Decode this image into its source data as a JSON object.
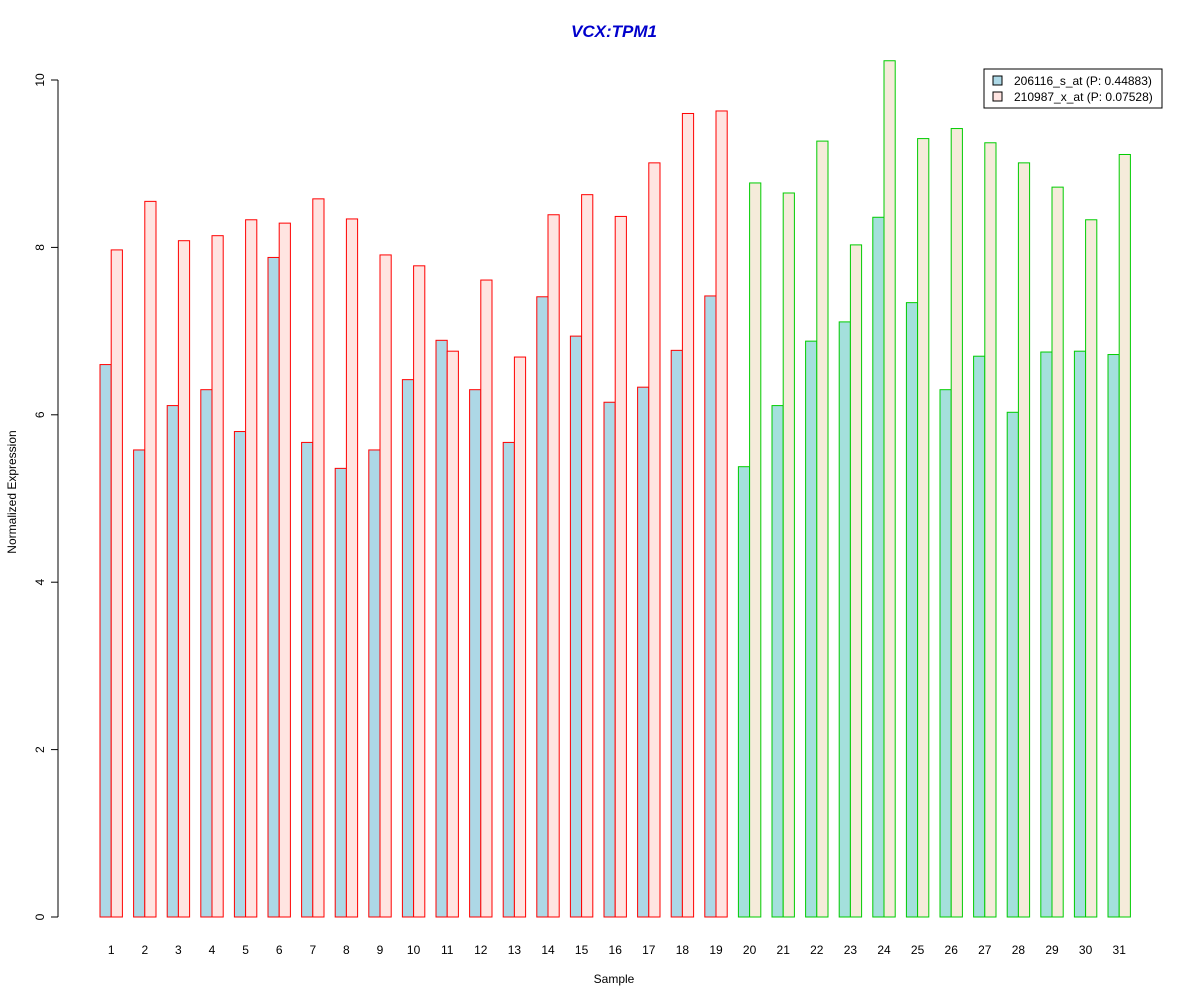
{
  "chart_data": {
    "type": "bar",
    "title": "VCX:TPM1",
    "xlabel": "Sample",
    "ylabel": "Normalized Expression",
    "ylim": [
      0,
      10
    ],
    "yticks": [
      0,
      2,
      4,
      6,
      8,
      10
    ],
    "grid": false,
    "legend_position": "top-right",
    "categories": [
      "1",
      "2",
      "3",
      "4",
      "5",
      "6",
      "7",
      "8",
      "9",
      "10",
      "11",
      "12",
      "13",
      "14",
      "15",
      "16",
      "17",
      "18",
      "19",
      "20",
      "21",
      "22",
      "23",
      "24",
      "25",
      "26",
      "27",
      "28",
      "29",
      "30",
      "31"
    ],
    "groups": {
      "group1_samples": 19,
      "group1_border": "#ff0000",
      "group2_border": "#00cc00"
    },
    "series": [
      {
        "name": "206116_s_at (P: 0.44883)",
        "color_group1": "#add8e6",
        "color_group2": "#a4e0dc",
        "values": [
          6.6,
          5.58,
          6.11,
          6.3,
          5.8,
          7.88,
          5.67,
          5.36,
          5.58,
          6.42,
          6.89,
          6.3,
          5.67,
          7.41,
          6.94,
          6.15,
          6.33,
          6.77,
          7.42,
          5.38,
          6.11,
          6.88,
          7.11,
          8.36,
          7.34,
          6.3,
          6.7,
          6.03,
          6.75,
          6.76,
          6.72
        ]
      },
      {
        "name": "210987_x_at (P: 0.07528)",
        "color_group1": "#ffe4e1",
        "color_group2": "#f5ebda",
        "values": [
          7.97,
          8.55,
          8.08,
          8.14,
          8.33,
          8.29,
          8.58,
          8.34,
          7.91,
          7.78,
          6.76,
          7.61,
          6.69,
          8.39,
          8.63,
          8.37,
          9.01,
          9.6,
          9.63,
          8.77,
          8.65,
          9.27,
          8.03,
          10.23,
          9.3,
          9.42,
          9.25,
          9.01,
          8.72,
          8.33,
          9.11
        ]
      }
    ]
  }
}
